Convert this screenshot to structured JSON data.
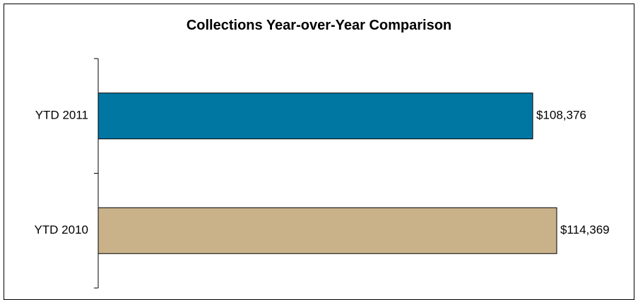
{
  "chart_data": {
    "type": "bar",
    "orientation": "horizontal",
    "title": "Collections Year-over-Year Comparison",
    "categories": [
      "YTD 2011",
      "YTD 2010"
    ],
    "values": [
      108376,
      114369
    ],
    "value_labels": [
      "$108,376",
      "$114,369"
    ],
    "colors": [
      "#0077A3",
      "#C9B28A"
    ],
    "xlim": [
      0,
      129000
    ],
    "grid": false,
    "legend": "none"
  }
}
